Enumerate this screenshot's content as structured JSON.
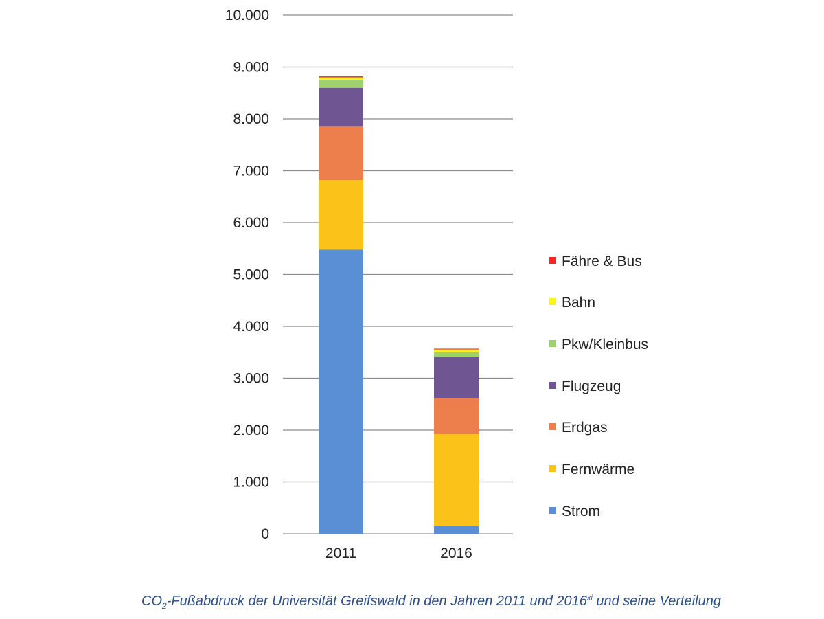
{
  "chart_data": {
    "type": "bar",
    "stacked": true,
    "title": "",
    "xlabel": "",
    "ylabel": "",
    "ylim": [
      0,
      10000
    ],
    "yticks": [
      0,
      1000,
      2000,
      3000,
      4000,
      5000,
      6000,
      7000,
      8000,
      9000,
      10000
    ],
    "ytick_labels": [
      "0",
      "1.000",
      "2.000",
      "3.000",
      "4.000",
      "5.000",
      "6.000",
      "7.000",
      "8.000",
      "9.000",
      "10.000"
    ],
    "grid": true,
    "legend_position": "right",
    "categories": [
      "2011",
      "2016"
    ],
    "series": [
      {
        "name": "Strom",
        "color": "#5a8fd6",
        "values": [
          5480,
          150
        ]
      },
      {
        "name": "Fernwärme",
        "color": "#fbc21a",
        "values": [
          1340,
          1770
        ]
      },
      {
        "name": "Erdgas",
        "color": "#ec7f4b",
        "values": [
          1030,
          690
        ]
      },
      {
        "name": "Flugzeug",
        "color": "#6f5592",
        "values": [
          750,
          800
        ]
      },
      {
        "name": "Pkw/Kleinbus",
        "color": "#9fd26c",
        "values": [
          155,
          90
        ]
      },
      {
        "name": "Bahn",
        "color": "#fbf41c",
        "values": [
          45,
          55
        ]
      },
      {
        "name": "Fähre & Bus",
        "color": "#f5262a",
        "values": [
          20,
          15
        ]
      }
    ]
  },
  "caption": {
    "co": "CO",
    "sub": "2",
    "part1": "-Fußabdruck der Universität Greifswald in den Jahren 2011 und 2016",
    "sup": "xi",
    "part2": " und seine Verteilung"
  }
}
